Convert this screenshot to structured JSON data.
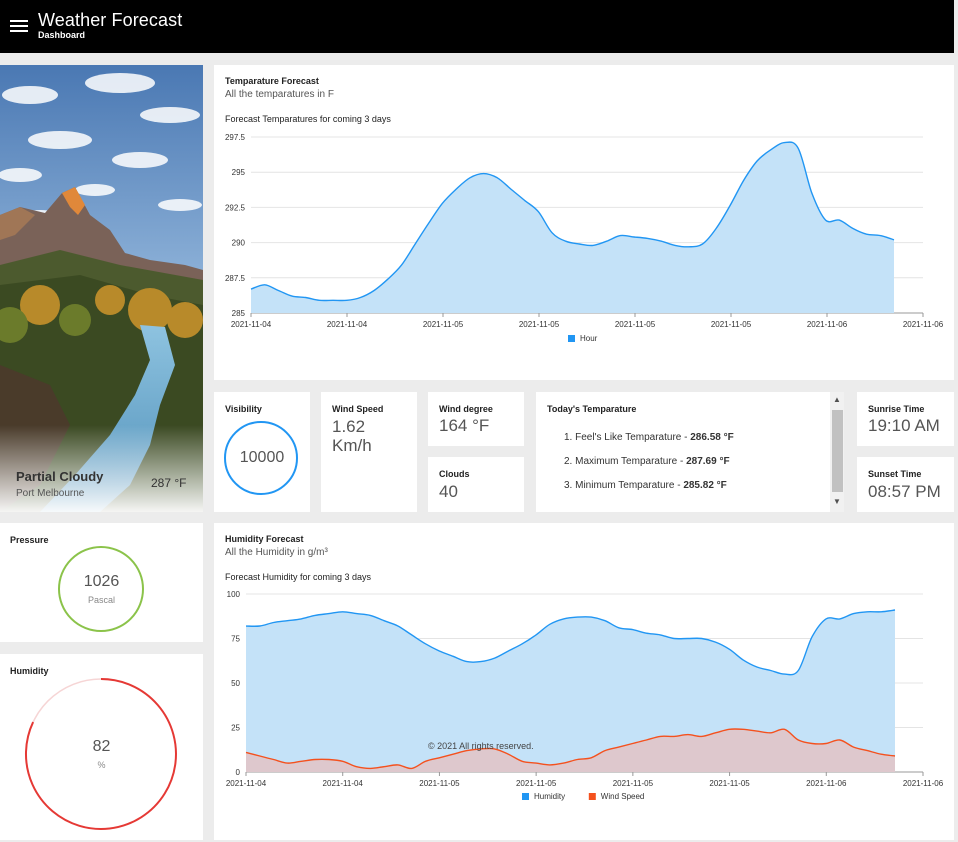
{
  "header": {
    "title": "Weather Forecast",
    "subtitle": "Dashboard",
    "menu_icon": "hamburger-menu-icon"
  },
  "hero": {
    "condition": "Partial Cloudy",
    "location": "Port Melbourne",
    "temp": "287 °F"
  },
  "temp_card": {
    "title": "Temparature Forecast",
    "subtitle": "All the temparatures in F"
  },
  "humidity_card": {
    "title": "Humidity Forecast",
    "subtitle": "All the Humidity in g/m³"
  },
  "visibility": {
    "label": "Visibility",
    "value": "10000"
  },
  "wind_speed": {
    "label": "Wind Speed",
    "value": "1.62",
    "unit": "Km/h"
  },
  "wind_degree": {
    "label": "Wind degree",
    "value": "164 °F"
  },
  "clouds": {
    "label": "Clouds",
    "value": "40"
  },
  "today": {
    "title": "Today's Temparature",
    "items": [
      {
        "num": "1.",
        "label": "Feel's Like Temparature - ",
        "value": "286.58 °F"
      },
      {
        "num": "2.",
        "label": "Maximum Temparature - ",
        "value": "287.69 °F"
      },
      {
        "num": "3.",
        "label": "Minimum Temparature - ",
        "value": "285.82 °F"
      }
    ]
  },
  "sunrise": {
    "label": "Sunrise Time",
    "value": "19:10 AM"
  },
  "sunset": {
    "label": "Sunset Time",
    "value": "08:57 PM"
  },
  "pressure": {
    "label": "Pressure",
    "value": "1026",
    "unit": "Pascal"
  },
  "humidity_gauge": {
    "label": "Humidity",
    "value": "82",
    "unit": "%",
    "percent": 82
  },
  "footer": "© 2021 All rights reserved.",
  "colors": {
    "blue": "#2196f3",
    "blue_fill": "#c4e2f8",
    "red": "#f4511e",
    "red_fill": "#e3c3c6",
    "green": "#8bc34a",
    "gauge_red": "#e53935"
  },
  "chart_data": [
    {
      "type": "area",
      "title": "Forecast Temparatures for coming 3 days",
      "xlabels": [
        "2021-11-04",
        "2021-11-04",
        "2021-11-05",
        "2021-11-05",
        "2021-11-05",
        "2021-11-05",
        "2021-11-06",
        "2021-11-06"
      ],
      "ylim": [
        285,
        297.5
      ],
      "yticks": [
        "285",
        "287.5",
        "290",
        "292.5",
        "295",
        "297.5"
      ],
      "series": [
        {
          "name": "Hour",
          "values": [
            286.7,
            287.0,
            286.6,
            286.2,
            286.1,
            285.9,
            285.9,
            285.9,
            286.1,
            286.6,
            287.4,
            288.4,
            289.9,
            291.4,
            292.8,
            293.8,
            294.6,
            294.9,
            294.6,
            293.8,
            293.0,
            292.2,
            290.7,
            290.1,
            289.9,
            289.8,
            290.1,
            290.5,
            290.4,
            290.3,
            290.1,
            289.8,
            289.7,
            289.9,
            291.0,
            292.6,
            294.4,
            295.8,
            296.6,
            297.1,
            296.7,
            293.5,
            291.6,
            291.6,
            291.0,
            290.6,
            290.5,
            290.2
          ]
        }
      ],
      "legend": [
        "Hour"
      ]
    },
    {
      "type": "area",
      "title": "Forecast Humidity for coming 3 days",
      "xlabels": [
        "2021-11-04",
        "2021-11-04",
        "2021-11-05",
        "2021-11-05",
        "2021-11-05",
        "2021-11-05",
        "2021-11-06",
        "2021-11-06"
      ],
      "ylim": [
        0,
        100
      ],
      "yticks": [
        "0",
        "25",
        "50",
        "75",
        "100"
      ],
      "series": [
        {
          "name": "Humidity",
          "values": [
            82,
            82,
            84,
            85,
            86,
            88,
            89,
            90,
            89,
            88,
            85,
            82,
            77,
            72,
            68,
            65,
            62,
            62,
            64,
            68,
            72,
            77,
            83,
            86,
            87,
            87,
            85,
            81,
            80,
            78,
            77,
            75,
            75,
            75,
            73,
            69,
            63,
            59,
            57,
            55,
            57,
            76,
            86,
            86,
            89,
            90,
            90,
            91
          ]
        },
        {
          "name": "Wind Speed",
          "values": [
            11,
            9,
            7,
            5,
            6,
            7,
            7,
            6,
            3,
            2,
            3,
            4,
            2,
            6,
            8,
            10,
            12,
            13,
            13,
            10,
            6,
            5,
            4,
            5,
            7,
            8,
            12,
            14,
            16,
            18,
            20,
            20,
            21,
            20,
            22,
            24,
            24,
            23,
            22,
            24,
            18,
            16,
            16,
            18,
            14,
            12,
            10,
            9
          ]
        }
      ],
      "legend": [
        "Humidity",
        "Wind Speed"
      ]
    }
  ]
}
